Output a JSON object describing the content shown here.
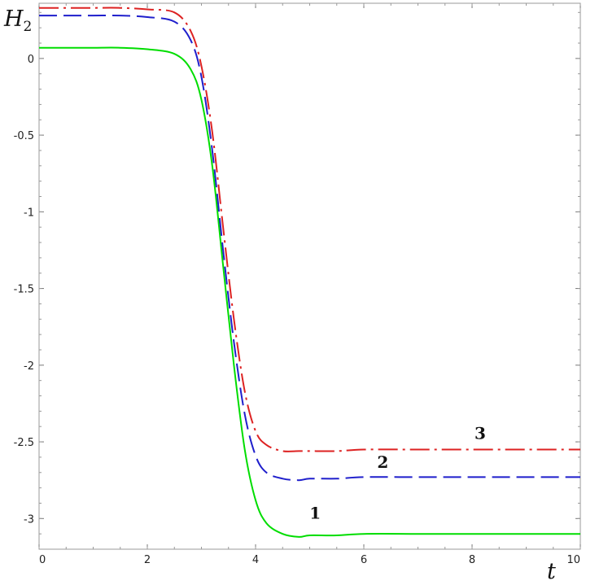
{
  "chart_data": {
    "type": "line",
    "title": "",
    "xlabel": "t",
    "ylabel": {
      "main": "H",
      "sub": "2"
    },
    "xlim": [
      0,
      10
    ],
    "ylim": [
      -3.2,
      0.36
    ],
    "x_ticks": [
      0,
      2,
      4,
      6,
      8,
      10
    ],
    "x_tick_labels": [
      "0",
      "2",
      "4",
      "6",
      "8",
      "10"
    ],
    "y_ticks": [
      0,
      -0.5,
      -1,
      -1.5,
      -2,
      -2.5,
      -3
    ],
    "y_tick_labels": [
      "0",
      "-0.5",
      "-1",
      "-1.5",
      "-2",
      "-2.5",
      "-3"
    ],
    "grid": false,
    "x": [
      0,
      0.5,
      1,
      1.5,
      2,
      2.5,
      2.8,
      3,
      3.2,
      3.4,
      3.6,
      3.8,
      4,
      4.2,
      4.5,
      4.8,
      5,
      5.5,
      6,
      7,
      8,
      9,
      10
    ],
    "series": [
      {
        "name": "1",
        "color": "#00dd00",
        "dash": "solid",
        "values": [
          0.07,
          0.07,
          0.07,
          0.07,
          0.06,
          0.03,
          -0.07,
          -0.27,
          -0.7,
          -1.35,
          -2.0,
          -2.55,
          -2.88,
          -3.03,
          -3.1,
          -3.12,
          -3.11,
          -3.11,
          -3.1,
          -3.1,
          -3.1,
          -3.1,
          -3.1
        ]
      },
      {
        "name": "2",
        "color": "#1f1fcc",
        "dash": "dashed",
        "values": [
          0.28,
          0.28,
          0.28,
          0.28,
          0.27,
          0.24,
          0.12,
          -0.12,
          -0.6,
          -1.25,
          -1.85,
          -2.32,
          -2.59,
          -2.7,
          -2.74,
          -2.75,
          -2.74,
          -2.74,
          -2.73,
          -2.73,
          -2.73,
          -2.73,
          -2.73
        ]
      },
      {
        "name": "3",
        "color": "#dd2222",
        "dash": "dashdot",
        "values": [
          0.33,
          0.33,
          0.33,
          0.33,
          0.32,
          0.3,
          0.18,
          -0.05,
          -0.48,
          -1.1,
          -1.7,
          -2.17,
          -2.43,
          -2.52,
          -2.56,
          -2.56,
          -2.56,
          -2.56,
          -2.55,
          -2.55,
          -2.55,
          -2.55,
          -2.55
        ]
      }
    ],
    "annotations": [
      {
        "text": "1",
        "x": 5.1,
        "y": -3.0
      },
      {
        "text": "2",
        "x": 6.35,
        "y": -2.67
      },
      {
        "text": "3",
        "x": 8.15,
        "y": -2.48
      }
    ]
  }
}
